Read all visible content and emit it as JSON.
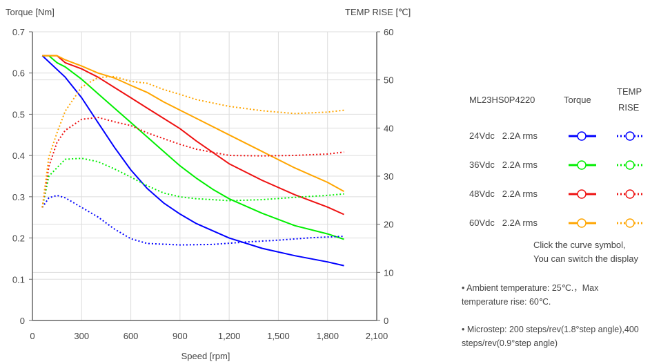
{
  "chart_data": {
    "type": "line",
    "xlabel": "Speed [rpm]",
    "ylabel": "Torque  [Nm]",
    "y2label": "TEMP RISE [℃]",
    "xlim": [
      0,
      2100
    ],
    "ylim": [
      0,
      0.7
    ],
    "y2lim": [
      0,
      60
    ],
    "xticks": [
      "0",
      "300",
      "600",
      "900",
      "1,200",
      "1,500",
      "1,800",
      "2,100"
    ],
    "yticks": [
      "0",
      "0.1",
      "0.2",
      "0.3",
      "0.4",
      "0.5",
      "0.6",
      "0.7"
    ],
    "y2ticks": [
      "0",
      "10",
      "20",
      "30",
      "40",
      "50",
      "60"
    ],
    "grid": true,
    "series": [
      {
        "name": "24Vdc torque",
        "color": "#0000ff",
        "axis": "left",
        "style": "solid",
        "points": [
          [
            60,
            0.642
          ],
          [
            200,
            0.59
          ],
          [
            300,
            0.54
          ],
          [
            400,
            0.48
          ],
          [
            500,
            0.42
          ],
          [
            600,
            0.365
          ],
          [
            700,
            0.32
          ],
          [
            800,
            0.285
          ],
          [
            900,
            0.258
          ],
          [
            1000,
            0.235
          ],
          [
            1200,
            0.2
          ],
          [
            1400,
            0.175
          ],
          [
            1600,
            0.157
          ],
          [
            1800,
            0.142
          ],
          [
            1900,
            0.133
          ]
        ]
      },
      {
        "name": "36Vdc torque",
        "color": "#00ee00",
        "axis": "left",
        "style": "solid",
        "points": [
          [
            60,
            0.642
          ],
          [
            100,
            0.642
          ],
          [
            150,
            0.625
          ],
          [
            200,
            0.615
          ],
          [
            300,
            0.585
          ],
          [
            400,
            0.55
          ],
          [
            500,
            0.515
          ],
          [
            600,
            0.48
          ],
          [
            700,
            0.445
          ],
          [
            800,
            0.41
          ],
          [
            900,
            0.375
          ],
          [
            1000,
            0.345
          ],
          [
            1100,
            0.318
          ],
          [
            1200,
            0.295
          ],
          [
            1400,
            0.26
          ],
          [
            1600,
            0.23
          ],
          [
            1800,
            0.21
          ],
          [
            1900,
            0.197
          ]
        ]
      },
      {
        "name": "48Vdc torque",
        "color": "#ee1111",
        "axis": "left",
        "style": "solid",
        "points": [
          [
            60,
            0.642
          ],
          [
            150,
            0.642
          ],
          [
            200,
            0.625
          ],
          [
            300,
            0.61
          ],
          [
            400,
            0.59
          ],
          [
            500,
            0.565
          ],
          [
            600,
            0.54
          ],
          [
            700,
            0.515
          ],
          [
            800,
            0.49
          ],
          [
            900,
            0.465
          ],
          [
            1000,
            0.435
          ],
          [
            1200,
            0.38
          ],
          [
            1400,
            0.34
          ],
          [
            1600,
            0.305
          ],
          [
            1800,
            0.275
          ],
          [
            1900,
            0.257
          ]
        ]
      },
      {
        "name": "60Vdc torque",
        "color": "#ffa500",
        "axis": "left",
        "style": "solid",
        "points": [
          [
            60,
            0.642
          ],
          [
            150,
            0.642
          ],
          [
            200,
            0.632
          ],
          [
            300,
            0.617
          ],
          [
            400,
            0.6
          ],
          [
            500,
            0.588
          ],
          [
            600,
            0.57
          ],
          [
            700,
            0.553
          ],
          [
            800,
            0.53
          ],
          [
            900,
            0.51
          ],
          [
            1000,
            0.49
          ],
          [
            1200,
            0.45
          ],
          [
            1400,
            0.41
          ],
          [
            1600,
            0.37
          ],
          [
            1800,
            0.335
          ],
          [
            1900,
            0.313
          ]
        ]
      },
      {
        "name": "24Vdc temp rise",
        "color": "#0000ff",
        "axis": "right",
        "style": "dotted",
        "points": [
          [
            60,
            23.5
          ],
          [
            100,
            25.5
          ],
          [
            150,
            26
          ],
          [
            200,
            25.5
          ],
          [
            300,
            23.5
          ],
          [
            400,
            21.5
          ],
          [
            500,
            19
          ],
          [
            600,
            17
          ],
          [
            700,
            16
          ],
          [
            900,
            15.7
          ],
          [
            1100,
            15.8
          ],
          [
            1300,
            16.3
          ],
          [
            1500,
            16.7
          ],
          [
            1700,
            17.2
          ],
          [
            1900,
            17.5
          ]
        ]
      },
      {
        "name": "36Vdc temp rise",
        "color": "#00ee00",
        "axis": "right",
        "style": "dotted",
        "points": [
          [
            60,
            23.5
          ],
          [
            100,
            30
          ],
          [
            200,
            33.5
          ],
          [
            300,
            33.7
          ],
          [
            400,
            33
          ],
          [
            500,
            31.5
          ],
          [
            600,
            29.8
          ],
          [
            700,
            28
          ],
          [
            800,
            26.5
          ],
          [
            900,
            25.7
          ],
          [
            1000,
            25.3
          ],
          [
            1200,
            24.9
          ],
          [
            1400,
            25.1
          ],
          [
            1600,
            25.6
          ],
          [
            1800,
            26
          ],
          [
            1900,
            26.3
          ]
        ]
      },
      {
        "name": "48Vdc temp rise",
        "color": "#ee1111",
        "axis": "right",
        "style": "dotted",
        "points": [
          [
            60,
            23.5
          ],
          [
            100,
            32
          ],
          [
            150,
            37
          ],
          [
            200,
            39.5
          ],
          [
            300,
            41.8
          ],
          [
            400,
            42.2
          ],
          [
            500,
            41.3
          ],
          [
            600,
            40.5
          ],
          [
            700,
            39
          ],
          [
            800,
            37.8
          ],
          [
            900,
            36.6
          ],
          [
            1000,
            35.6
          ],
          [
            1200,
            34.3
          ],
          [
            1400,
            34.2
          ],
          [
            1600,
            34.3
          ],
          [
            1800,
            34.6
          ],
          [
            1900,
            35
          ]
        ]
      },
      {
        "name": "60Vdc temp rise",
        "color": "#ffa500",
        "axis": "right",
        "style": "dotted",
        "points": [
          [
            60,
            23.5
          ],
          [
            100,
            34
          ],
          [
            150,
            39
          ],
          [
            200,
            43.5
          ],
          [
            300,
            48.5
          ],
          [
            400,
            50.5
          ],
          [
            500,
            50.7
          ],
          [
            600,
            49.7
          ],
          [
            700,
            49.3
          ],
          [
            800,
            48
          ],
          [
            900,
            47
          ],
          [
            1000,
            45.9
          ],
          [
            1200,
            44.5
          ],
          [
            1400,
            43.6
          ],
          [
            1600,
            43
          ],
          [
            1800,
            43.3
          ],
          [
            1900,
            43.7
          ]
        ]
      }
    ]
  },
  "legend": {
    "model": "ML23HS0P4220",
    "col_torque": "Torque",
    "col_temp1": "TEMP",
    "col_temp2": "RISE",
    "rows": [
      {
        "label": "24Vdc   2.2A rms",
        "color": "#0000ff"
      },
      {
        "label": "36Vdc   2.2A rms",
        "color": "#00ee00"
      },
      {
        "label": "48Vdc   2.2A rms",
        "color": "#ee1111"
      },
      {
        "label": "60Vdc   2.2A rms",
        "color": "#ffa500"
      }
    ],
    "hint1": "Click the curve symbol,",
    "hint2": "You can switch the display"
  },
  "notes": [
    "•   Ambient temperature: 25℃.，Max temperature rise: 60℃.",
    "•   Microstep: 200 steps/rev(1.8°step angle),400 steps/rev(0.9°step angle)"
  ]
}
